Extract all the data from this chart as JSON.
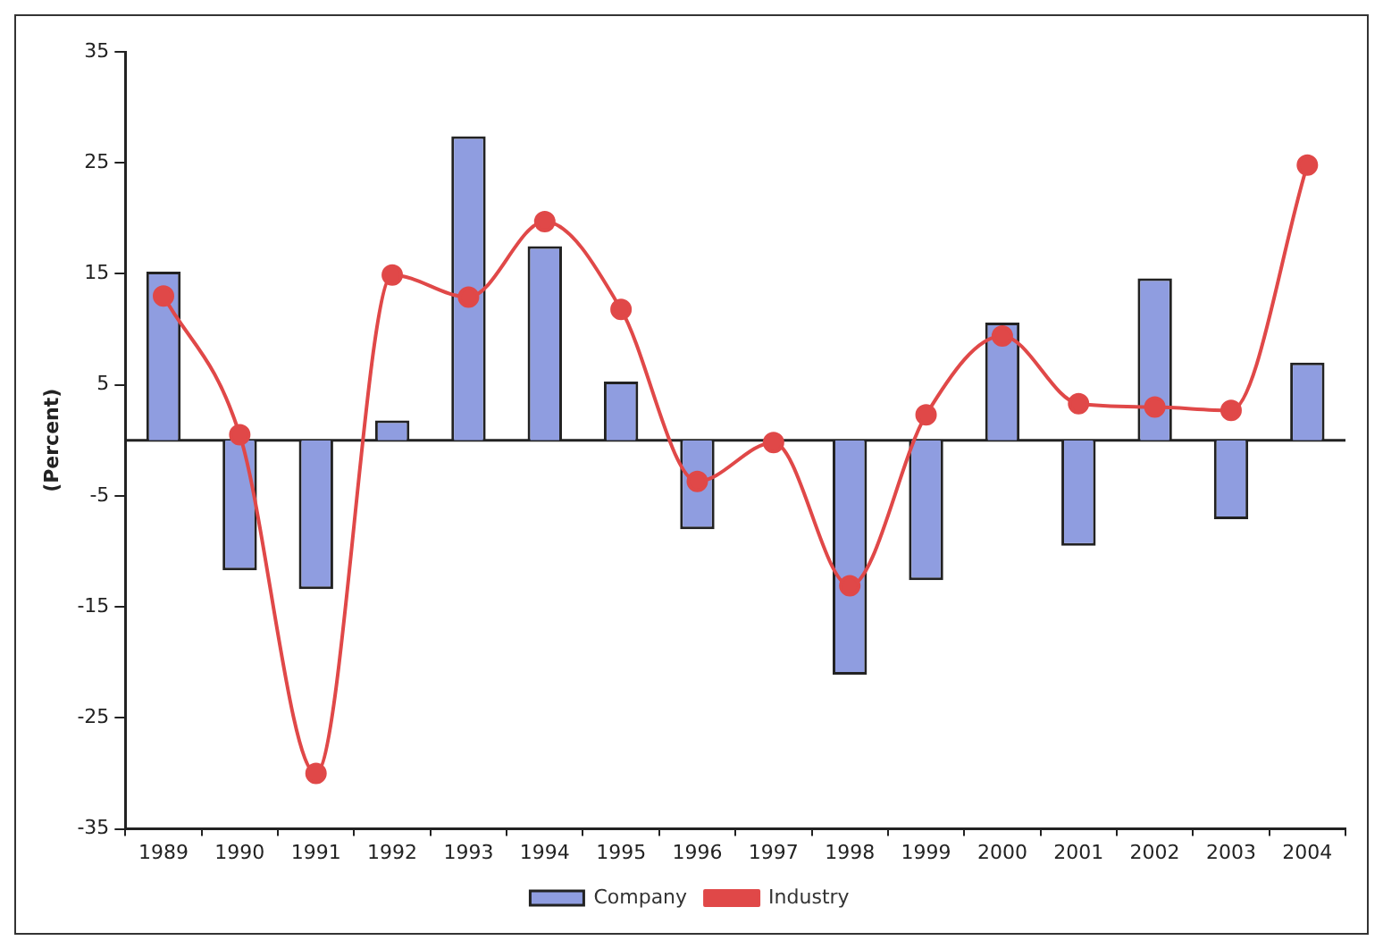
{
  "chart_data": {
    "type": "bar",
    "ylabel": "(Percent)",
    "categories": [
      "1989",
      "1990",
      "1991",
      "1992",
      "1993",
      "1994",
      "1995",
      "1996",
      "1997",
      "1998",
      "1999",
      "2000",
      "2001",
      "2002",
      "2003",
      "2004"
    ],
    "series": [
      {
        "name": "Company",
        "color": "#8f9de0",
        "values": [
          15.2,
          -11.7,
          -13.4,
          1.8,
          27.4,
          17.5,
          5.3,
          -8.0,
          0,
          -21.1,
          -12.6,
          10.6,
          -9.5,
          14.6,
          -7.1,
          7.0
        ]
      },
      {
        "name": "Industry",
        "type": "line",
        "color": "#e04848",
        "values": [
          13.0,
          0.5,
          -30.0,
          14.9,
          12.9,
          19.7,
          11.8,
          -3.7,
          -0.2,
          -13.1,
          2.3,
          9.4,
          3.3,
          3.0,
          2.7,
          24.8
        ]
      }
    ],
    "ylim": [
      -35,
      35
    ],
    "yticks": [
      -35,
      -25,
      -15,
      -5,
      5,
      15,
      25,
      35
    ],
    "grid": false,
    "ref_lines": [
      {
        "axis": "y",
        "value": 0
      }
    ],
    "legend": "bottom",
    "marker": "circle"
  }
}
